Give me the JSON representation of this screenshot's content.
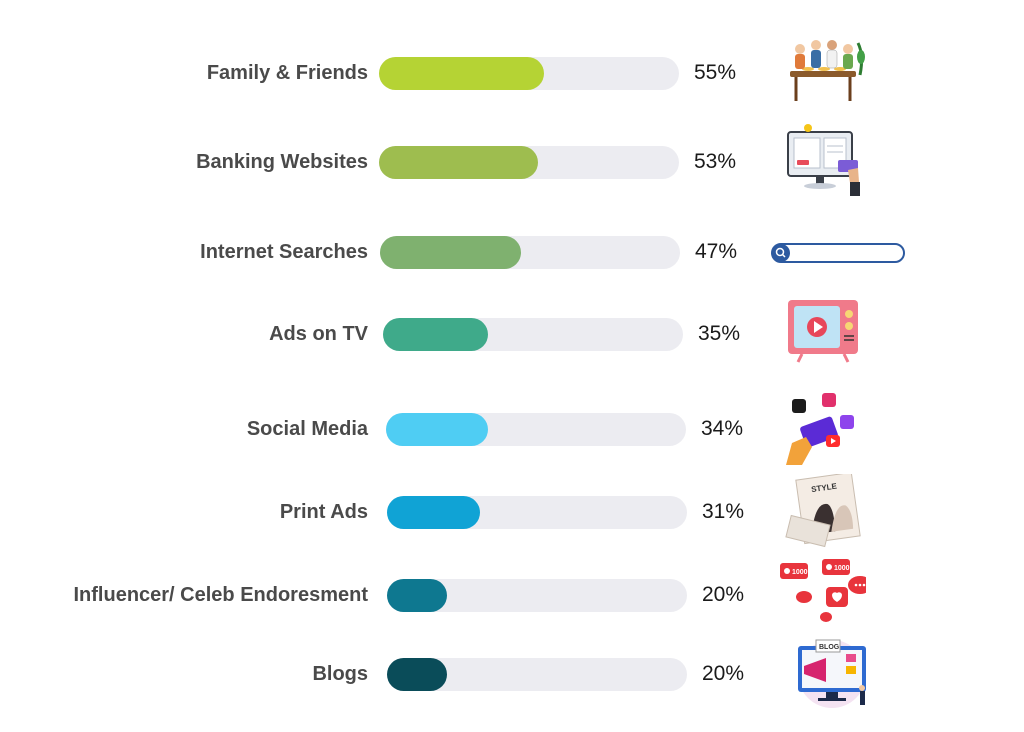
{
  "chart_data": {
    "type": "bar",
    "orientation": "horizontal",
    "title": "",
    "xlim": [
      0,
      100
    ],
    "categories": [
      "Family & Friends",
      "Banking Websites",
      "Internet Searches",
      "Ads on TV",
      "Social Media",
      "Print Ads",
      "Influencer/ Celeb Endoresment",
      "Blogs"
    ],
    "values": [
      55,
      53,
      47,
      35,
      34,
      31,
      20,
      20
    ],
    "value_labels": [
      "55%",
      "53%",
      "47%",
      "35%",
      "34%",
      "31%",
      "20%",
      "20%"
    ],
    "colors": [
      "#b5d334",
      "#9ebd4f",
      "#7fb16f",
      "#3faa8a",
      "#4fcdf3",
      "#10a3d5",
      "#0e7890",
      "#0a4c59"
    ],
    "track_color": "#ececf1",
    "icons": [
      "family-dinner-icon",
      "online-banking-icon",
      "search-bar-icon",
      "retro-tv-icon",
      "social-media-icon",
      "print-magazine-icon",
      "likes-notification-icon",
      "blog-megaphone-icon"
    ],
    "grid": false,
    "legend": "none"
  }
}
